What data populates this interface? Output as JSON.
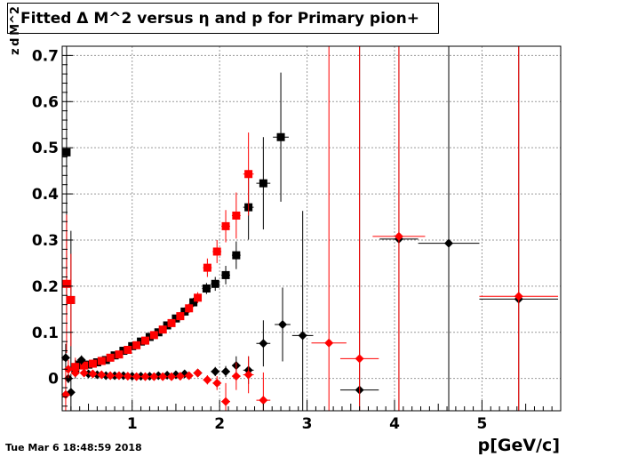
{
  "title": "Fitted Δ M^2 versus η and p for Primary pion+",
  "timestamp": "Tue Mar  6 18:48:59 2018",
  "chart_data": {
    "type": "scatter",
    "title": "Fitted Δ M^2 versus η and p for Primary pion+",
    "xlabel": "p[GeV/c]",
    "ylabel": "z d M^2",
    "xlim": [
      0.2,
      5.9
    ],
    "ylim": [
      -0.07,
      0.72
    ],
    "x_ticks": [
      1,
      2,
      3,
      4,
      5
    ],
    "y_ticks": [
      0,
      0.1,
      0.2,
      0.3,
      0.4,
      0.5,
      0.6,
      0.7
    ],
    "y_tick_labels": [
      "0",
      "0.1",
      "0.2",
      "0.3",
      "0.4",
      "0.5",
      "0.6",
      "0.7"
    ],
    "grid": true,
    "series": [
      {
        "color": "#000000",
        "marker": "square",
        "points": [
          {
            "x": 0.25,
            "y": 0.49,
            "ex": 0.02,
            "ey": 0.35
          },
          {
            "x": 0.3,
            "y": 0.17,
            "ex": 0.02,
            "ey": 0.15
          },
          {
            "x": 0.35,
            "y": 0.02,
            "ex": 0.02,
            "ey": 0.02
          },
          {
            "x": 0.4,
            "y": 0.03,
            "ex": 0.02,
            "ey": 0.01
          },
          {
            "x": 0.5,
            "y": 0.03,
            "ex": 0.03,
            "ey": 0.005
          },
          {
            "x": 0.6,
            "y": 0.035,
            "ex": 0.03,
            "ey": 0.005
          },
          {
            "x": 0.7,
            "y": 0.04,
            "ex": 0.03,
            "ey": 0.005
          },
          {
            "x": 0.8,
            "y": 0.05,
            "ex": 0.03,
            "ey": 0.005
          },
          {
            "x": 0.9,
            "y": 0.06,
            "ex": 0.03,
            "ey": 0.005
          },
          {
            "x": 1.0,
            "y": 0.07,
            "ex": 0.03,
            "ey": 0.005
          },
          {
            "x": 1.1,
            "y": 0.08,
            "ex": 0.03,
            "ey": 0.005
          },
          {
            "x": 1.2,
            "y": 0.09,
            "ex": 0.03,
            "ey": 0.006
          },
          {
            "x": 1.3,
            "y": 0.1,
            "ex": 0.03,
            "ey": 0.006
          },
          {
            "x": 1.4,
            "y": 0.115,
            "ex": 0.03,
            "ey": 0.007
          },
          {
            "x": 1.5,
            "y": 0.13,
            "ex": 0.03,
            "ey": 0.008
          },
          {
            "x": 1.6,
            "y": 0.145,
            "ex": 0.03,
            "ey": 0.009
          },
          {
            "x": 1.7,
            "y": 0.165,
            "ex": 0.03,
            "ey": 0.01
          },
          {
            "x": 1.85,
            "y": 0.195,
            "ex": 0.05,
            "ey": 0.012
          },
          {
            "x": 1.95,
            "y": 0.205,
            "ex": 0.05,
            "ey": 0.015
          },
          {
            "x": 2.07,
            "y": 0.224,
            "ex": 0.05,
            "ey": 0.02
          },
          {
            "x": 2.19,
            "y": 0.267,
            "ex": 0.05,
            "ey": 0.03
          },
          {
            "x": 2.33,
            "y": 0.371,
            "ex": 0.06,
            "ey": 0.07
          },
          {
            "x": 2.5,
            "y": 0.423,
            "ex": 0.08,
            "ey": 0.1
          },
          {
            "x": 2.7,
            "y": 0.523,
            "ex": 0.09,
            "ey": 0.14
          }
        ]
      },
      {
        "color": "#ff0000",
        "marker": "square",
        "points": [
          {
            "x": 0.25,
            "y": 0.205,
            "ex": 0.02,
            "ey": 0.15
          },
          {
            "x": 0.3,
            "y": 0.17,
            "ex": 0.02,
            "ey": 0.1
          },
          {
            "x": 0.35,
            "y": 0.025,
            "ex": 0.02,
            "ey": 0.02
          },
          {
            "x": 0.45,
            "y": 0.028,
            "ex": 0.03,
            "ey": 0.005
          },
          {
            "x": 0.55,
            "y": 0.032,
            "ex": 0.03,
            "ey": 0.005
          },
          {
            "x": 0.65,
            "y": 0.038,
            "ex": 0.03,
            "ey": 0.005
          },
          {
            "x": 0.75,
            "y": 0.045,
            "ex": 0.03,
            "ey": 0.005
          },
          {
            "x": 0.85,
            "y": 0.052,
            "ex": 0.03,
            "ey": 0.005
          },
          {
            "x": 0.95,
            "y": 0.062,
            "ex": 0.03,
            "ey": 0.005
          },
          {
            "x": 1.05,
            "y": 0.072,
            "ex": 0.03,
            "ey": 0.005
          },
          {
            "x": 1.15,
            "y": 0.082,
            "ex": 0.03,
            "ey": 0.006
          },
          {
            "x": 1.25,
            "y": 0.094,
            "ex": 0.03,
            "ey": 0.006
          },
          {
            "x": 1.35,
            "y": 0.106,
            "ex": 0.03,
            "ey": 0.007
          },
          {
            "x": 1.45,
            "y": 0.12,
            "ex": 0.03,
            "ey": 0.008
          },
          {
            "x": 1.55,
            "y": 0.135,
            "ex": 0.03,
            "ey": 0.009
          },
          {
            "x": 1.65,
            "y": 0.152,
            "ex": 0.03,
            "ey": 0.01
          },
          {
            "x": 1.75,
            "y": 0.175,
            "ex": 0.03,
            "ey": 0.012
          },
          {
            "x": 1.86,
            "y": 0.24,
            "ex": 0.05,
            "ey": 0.02
          },
          {
            "x": 1.97,
            "y": 0.275,
            "ex": 0.05,
            "ey": 0.025
          },
          {
            "x": 2.07,
            "y": 0.33,
            "ex": 0.05,
            "ey": 0.035
          },
          {
            "x": 2.19,
            "y": 0.353,
            "ex": 0.05,
            "ey": 0.05
          },
          {
            "x": 2.33,
            "y": 0.443,
            "ex": 0.06,
            "ey": 0.09
          }
        ]
      },
      {
        "color": "#000000",
        "marker": "diamond",
        "points": [
          {
            "x": 0.24,
            "y": 0.045,
            "ex": 0.02,
            "ey": 0.03
          },
          {
            "x": 0.27,
            "y": 0.0,
            "ex": 0.02,
            "ey": 0.01
          },
          {
            "x": 0.3,
            "y": -0.03,
            "ex": 0.02,
            "ey": 0.04
          },
          {
            "x": 0.42,
            "y": 0.04,
            "ex": 0.02,
            "ey": 0.01
          },
          {
            "x": 0.5,
            "y": 0.01,
            "ex": 0.03,
            "ey": 0.003
          },
          {
            "x": 0.6,
            "y": 0.008,
            "ex": 0.03,
            "ey": 0.003
          },
          {
            "x": 0.7,
            "y": 0.006,
            "ex": 0.03,
            "ey": 0.003
          },
          {
            "x": 0.8,
            "y": 0.006,
            "ex": 0.03,
            "ey": 0.003
          },
          {
            "x": 0.9,
            "y": 0.006,
            "ex": 0.03,
            "ey": 0.003
          },
          {
            "x": 1.0,
            "y": 0.005,
            "ex": 0.03,
            "ey": 0.003
          },
          {
            "x": 1.1,
            "y": 0.005,
            "ex": 0.03,
            "ey": 0.003
          },
          {
            "x": 1.2,
            "y": 0.005,
            "ex": 0.03,
            "ey": 0.003
          },
          {
            "x": 1.3,
            "y": 0.006,
            "ex": 0.03,
            "ey": 0.003
          },
          {
            "x": 1.4,
            "y": 0.007,
            "ex": 0.03,
            "ey": 0.004
          },
          {
            "x": 1.5,
            "y": 0.008,
            "ex": 0.03,
            "ey": 0.004
          },
          {
            "x": 1.6,
            "y": 0.01,
            "ex": 0.03,
            "ey": 0.005
          },
          {
            "x": 1.75,
            "y": 0.012,
            "ex": 0.05,
            "ey": 0.006
          },
          {
            "x": 1.95,
            "y": 0.015,
            "ex": 0.05,
            "ey": 0.01
          },
          {
            "x": 2.07,
            "y": 0.015,
            "ex": 0.05,
            "ey": 0.012
          },
          {
            "x": 2.19,
            "y": 0.028,
            "ex": 0.05,
            "ey": 0.02
          },
          {
            "x": 2.33,
            "y": 0.018,
            "ex": 0.06,
            "ey": 0.03
          },
          {
            "x": 2.5,
            "y": 0.076,
            "ex": 0.08,
            "ey": 0.05
          },
          {
            "x": 2.72,
            "y": 0.117,
            "ex": 0.09,
            "ey": 0.08
          },
          {
            "x": 2.95,
            "y": 0.093,
            "ex": 0.12,
            "ey": 0.27
          },
          {
            "x": 3.6,
            "y": -0.025,
            "ex": 0.22,
            "ey": 0.8
          },
          {
            "x": 4.05,
            "y": 0.302,
            "ex": 0.22,
            "ey": 0.9
          },
          {
            "x": 4.62,
            "y": 0.293,
            "ex": 0.35,
            "ey": 0.9
          },
          {
            "x": 5.42,
            "y": 0.172,
            "ex": 0.45,
            "ey": 0.9
          }
        ]
      },
      {
        "color": "#ff0000",
        "marker": "diamond",
        "points": [
          {
            "x": 0.24,
            "y": -0.035,
            "ex": 0.02,
            "ey": 0.05
          },
          {
            "x": 0.27,
            "y": 0.02,
            "ex": 0.02,
            "ey": 0.02
          },
          {
            "x": 0.35,
            "y": 0.012,
            "ex": 0.02,
            "ey": 0.005
          },
          {
            "x": 0.45,
            "y": 0.012,
            "ex": 0.03,
            "ey": 0.003
          },
          {
            "x": 0.55,
            "y": 0.01,
            "ex": 0.03,
            "ey": 0.003
          },
          {
            "x": 0.65,
            "y": 0.008,
            "ex": 0.03,
            "ey": 0.003
          },
          {
            "x": 0.75,
            "y": 0.006,
            "ex": 0.03,
            "ey": 0.003
          },
          {
            "x": 0.85,
            "y": 0.006,
            "ex": 0.03,
            "ey": 0.003
          },
          {
            "x": 0.95,
            "y": 0.005,
            "ex": 0.03,
            "ey": 0.003
          },
          {
            "x": 1.05,
            "y": 0.004,
            "ex": 0.03,
            "ey": 0.003
          },
          {
            "x": 1.15,
            "y": 0.004,
            "ex": 0.03,
            "ey": 0.003
          },
          {
            "x": 1.25,
            "y": 0.004,
            "ex": 0.03,
            "ey": 0.003
          },
          {
            "x": 1.35,
            "y": 0.004,
            "ex": 0.03,
            "ey": 0.003
          },
          {
            "x": 1.45,
            "y": 0.004,
            "ex": 0.03,
            "ey": 0.004
          },
          {
            "x": 1.55,
            "y": 0.005,
            "ex": 0.03,
            "ey": 0.004
          },
          {
            "x": 1.65,
            "y": 0.006,
            "ex": 0.03,
            "ey": 0.005
          },
          {
            "x": 1.75,
            "y": 0.012,
            "ex": 0.03,
            "ey": 0.006
          },
          {
            "x": 1.86,
            "y": -0.003,
            "ex": 0.05,
            "ey": 0.01
          },
          {
            "x": 1.97,
            "y": -0.01,
            "ex": 0.05,
            "ey": 0.015
          },
          {
            "x": 2.07,
            "y": -0.05,
            "ex": 0.05,
            "ey": 0.04
          },
          {
            "x": 2.19,
            "y": 0.005,
            "ex": 0.05,
            "ey": 0.03
          },
          {
            "x": 2.33,
            "y": 0.008,
            "ex": 0.06,
            "ey": 0.04
          },
          {
            "x": 2.5,
            "y": -0.047,
            "ex": 0.08,
            "ey": 0.06
          },
          {
            "x": 3.25,
            "y": 0.077,
            "ex": 0.2,
            "ey": 0.9
          },
          {
            "x": 3.6,
            "y": 0.043,
            "ex": 0.22,
            "ey": 0.9
          },
          {
            "x": 4.05,
            "y": 0.308,
            "ex": 0.3,
            "ey": 0.9
          },
          {
            "x": 5.42,
            "y": 0.178,
            "ex": 0.45,
            "ey": 0.9
          }
        ]
      }
    ]
  }
}
